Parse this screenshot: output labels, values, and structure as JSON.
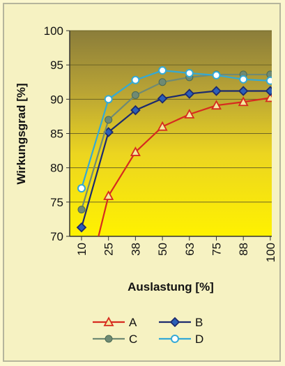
{
  "chart_data": {
    "type": "line",
    "xlabel": "Auslastung [%]",
    "ylabel": "Wirkungsgrad [%]",
    "categories": [
      "10",
      "25",
      "38",
      "50",
      "63",
      "75",
      "88",
      "100"
    ],
    "ylim": [
      70,
      100
    ],
    "yticks": [
      70,
      75,
      80,
      85,
      90,
      95,
      100
    ],
    "grid": true,
    "legend_position": "bottom",
    "series": [
      {
        "name": "A",
        "color": "#d62b1f",
        "marker": "triangle",
        "values": [
          null,
          75.9,
          82.3,
          86.0,
          87.8,
          89.1,
          89.6,
          90.2
        ],
        "clip_start_x": 10,
        "clip_start_y": 60
      },
      {
        "name": "B",
        "color": "#1c2a6e",
        "marker": "diamond",
        "values": [
          71.3,
          85.2,
          88.4,
          90.1,
          90.8,
          91.2,
          91.2,
          91.2
        ]
      },
      {
        "name": "C",
        "color": "#6f8a74",
        "marker": "circle",
        "values": [
          73.9,
          87.0,
          90.6,
          92.5,
          93.2,
          93.6,
          93.6,
          93.6
        ]
      },
      {
        "name": "D",
        "color": "#33a9d6",
        "marker": "open-circle",
        "values": [
          77.0,
          90.0,
          92.8,
          94.2,
          93.8,
          93.5,
          92.9,
          92.7
        ]
      }
    ]
  }
}
